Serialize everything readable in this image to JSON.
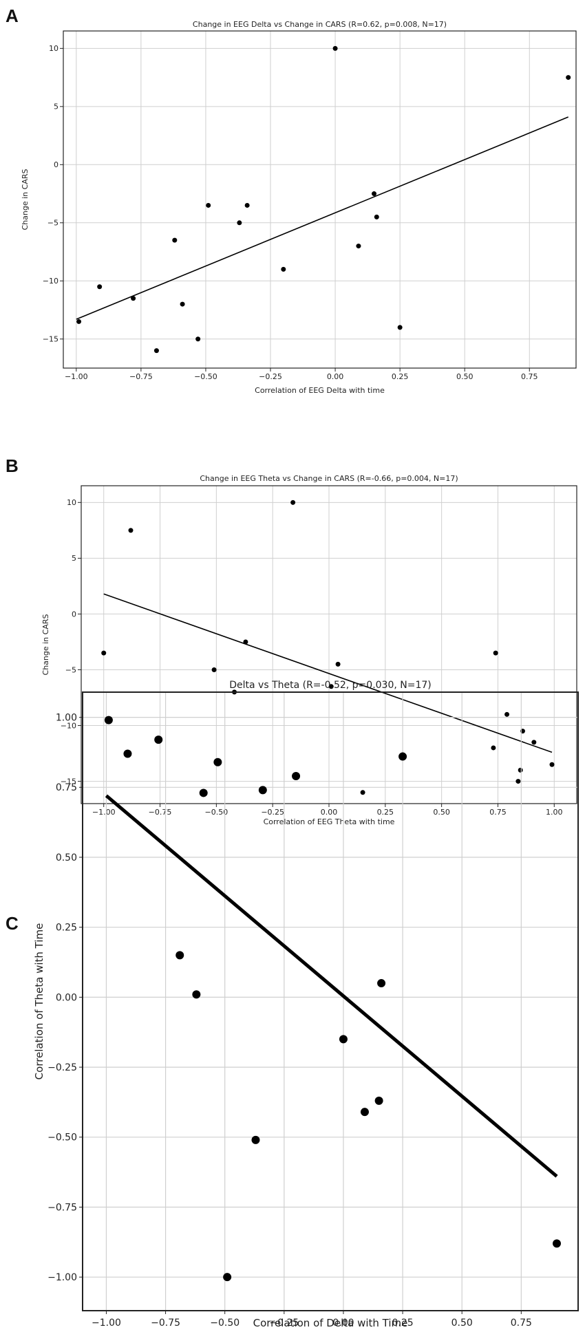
{
  "chart_data": [
    {
      "panel_label": "A",
      "type": "scatter",
      "title": "Change in EEG Delta vs Change in CARS (R=0.62, p=0.008, N=17)",
      "xlabel": "Correlation of EEG Delta with time",
      "ylabel": "Change in CARS",
      "xlim": [
        -1.05,
        0.93
      ],
      "ylim": [
        -17.5,
        11.5
      ],
      "xticks": [
        -1.0,
        -0.75,
        -0.5,
        -0.25,
        0.0,
        0.25,
        0.5,
        0.75
      ],
      "xtick_labels": [
        "−1.00",
        "−0.75",
        "−0.50",
        "−0.25",
        "0.00",
        "0.25",
        "0.50",
        "0.75"
      ],
      "yticks": [
        -15,
        -10,
        -5,
        0,
        5,
        10
      ],
      "ytick_labels": [
        "−15",
        "−10",
        "−5",
        "0",
        "5",
        "10"
      ],
      "grid": true,
      "points": [
        [
          -0.99,
          -13.5
        ],
        [
          -0.91,
          -10.5
        ],
        [
          -0.78,
          -11.5
        ],
        [
          -0.69,
          -16.0
        ],
        [
          -0.62,
          -6.5
        ],
        [
          -0.59,
          -12.0
        ],
        [
          -0.53,
          -15.0
        ],
        [
          -0.49,
          -3.5
        ],
        [
          -0.37,
          -5.0
        ],
        [
          -0.34,
          -3.5
        ],
        [
          -0.2,
          -9.0
        ],
        [
          0.0,
          10.0
        ],
        [
          0.09,
          -7.0
        ],
        [
          0.15,
          -2.5
        ],
        [
          0.16,
          -4.5
        ],
        [
          0.25,
          -14.0
        ],
        [
          0.9,
          7.5
        ]
      ],
      "fit_line": [
        [
          -1.0,
          -13.3
        ],
        [
          0.9,
          4.1
        ]
      ]
    },
    {
      "panel_label": "B",
      "type": "scatter",
      "title": "Change in EEG Theta vs Change in CARS (R=-0.66, p=0.004, N=17)",
      "xlabel": "Correlation of EEG Theta with time",
      "ylabel": "Change in CARS",
      "xlim": [
        -1.1,
        1.1
      ],
      "ylim": [
        -17.0,
        11.5
      ],
      "xticks": [
        -1.0,
        -0.75,
        -0.5,
        -0.25,
        0.0,
        0.25,
        0.5,
        0.75,
        1.0
      ],
      "xtick_labels": [
        "−1.00",
        "−0.75",
        "−0.50",
        "−0.25",
        "0.00",
        "0.25",
        "0.50",
        "0.75",
        "1.00"
      ],
      "yticks": [
        -15,
        -10,
        -5,
        0,
        5,
        10
      ],
      "ytick_labels": [
        "−15",
        "−10",
        "−5",
        "0",
        "5",
        "10"
      ],
      "grid": true,
      "points": [
        [
          -1.0,
          -3.5
        ],
        [
          -0.88,
          7.5
        ],
        [
          -0.51,
          -5.0
        ],
        [
          -0.42,
          -7.0
        ],
        [
          -0.37,
          -2.5
        ],
        [
          -0.16,
          10.0
        ],
        [
          0.01,
          -6.5
        ],
        [
          0.04,
          -4.5
        ],
        [
          0.15,
          -16.0
        ],
        [
          0.73,
          -12.0
        ],
        [
          0.74,
          -3.5
        ],
        [
          0.79,
          -9.0
        ],
        [
          0.84,
          -15.0
        ],
        [
          0.85,
          -14.0
        ],
        [
          0.86,
          -10.5
        ],
        [
          0.91,
          -11.5
        ],
        [
          0.99,
          -13.5
        ]
      ],
      "fit_line": [
        [
          -1.0,
          1.8
        ],
        [
          0.99,
          -12.4
        ]
      ]
    },
    {
      "panel_label": "C",
      "type": "scatter",
      "title": "Delta vs Theta (R=-0.52, p=0.030, N=17)",
      "xlabel": "Correlation of Delta with Time",
      "ylabel": "Correlation of Theta with Time",
      "xlim": [
        -1.1,
        0.99
      ],
      "ylim": [
        -1.12,
        1.09
      ],
      "xticks": [
        -1.0,
        -0.75,
        -0.5,
        -0.25,
        0.0,
        0.25,
        0.5,
        0.75
      ],
      "xtick_labels": [
        "−1.00",
        "−0.75",
        "−0.50",
        "−0.25",
        "0.00",
        "0.25",
        "0.50",
        "0.75"
      ],
      "yticks": [
        -1.0,
        -0.75,
        -0.5,
        -0.25,
        0.0,
        0.25,
        0.5,
        0.75,
        1.0
      ],
      "ytick_labels": [
        "−1.00",
        "−0.75",
        "−0.50",
        "−0.25",
        "0.00",
        "0.25",
        "0.50",
        "0.75",
        "1.00"
      ],
      "grid": true,
      "points": [
        [
          -0.99,
          0.99
        ],
        [
          -0.91,
          0.87
        ],
        [
          -0.78,
          0.92
        ],
        [
          -0.69,
          0.15
        ],
        [
          -0.62,
          0.01
        ],
        [
          -0.59,
          0.73
        ],
        [
          -0.53,
          0.84
        ],
        [
          -0.49,
          -1.0
        ],
        [
          -0.37,
          -0.51
        ],
        [
          -0.34,
          0.74
        ],
        [
          -0.2,
          0.79
        ],
        [
          0.0,
          -0.15
        ],
        [
          0.09,
          -0.41
        ],
        [
          0.15,
          -0.37
        ],
        [
          0.16,
          0.05
        ],
        [
          0.25,
          0.86
        ],
        [
          0.9,
          -0.88
        ]
      ],
      "fit_line": [
        [
          -1.0,
          0.72
        ],
        [
          0.9,
          -0.64
        ]
      ]
    }
  ]
}
